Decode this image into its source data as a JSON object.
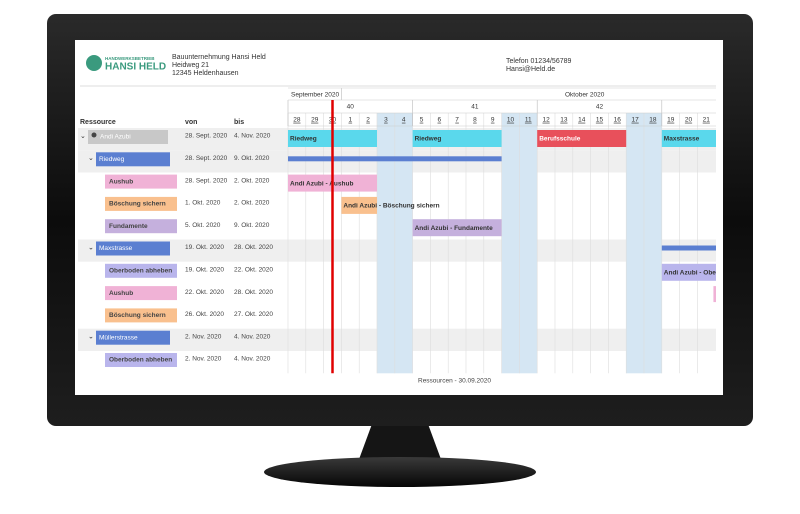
{
  "header": {
    "logo_small": "HANDWERKSBETRIEB",
    "logo_big": "HANSI HELD",
    "company": "Bauunternehmung Hansi Held",
    "street": "Heidweg 21",
    "city": "12345 Heldenhausen",
    "phone": "Telefon 01234/56789",
    "email": "Hansi@Held.de"
  },
  "table": {
    "columns": [
      "Ressource",
      "von",
      "bis"
    ],
    "rows": [
      [
        "Andi Azubi",
        "28. Sept. 2020",
        "4. Nov. 2020"
      ],
      [
        "Riedweg",
        "28. Sept. 2020",
        "9. Okt. 2020"
      ],
      [
        "Aushub",
        "28. Sept. 2020",
        "2. Okt. 2020"
      ],
      [
        "Böschung sichern",
        "1. Okt. 2020",
        "2. Okt. 2020"
      ],
      [
        "Fundamente",
        "5. Okt. 2020",
        "9. Okt. 2020"
      ],
      [
        "Maxstrasse",
        "19. Okt. 2020",
        "28. Okt. 2020"
      ],
      [
        "Oberboden abheben",
        "19. Okt. 2020",
        "22. Okt. 2020"
      ],
      [
        "Aushub",
        "22. Okt. 2020",
        "28. Okt. 2020"
      ],
      [
        "Böschung sichern",
        "26. Okt. 2020",
        "27. Okt. 2020"
      ],
      [
        "Müllerstrasse",
        "2. Nov. 2020",
        "4. Nov. 2020"
      ],
      [
        "Oberboden abheben",
        "2. Nov. 2020",
        "4. Nov. 2020"
      ]
    ]
  },
  "timeline": {
    "months": [
      "September 2020",
      "Oktober 2020"
    ],
    "weeks": [
      "40",
      "41",
      "42"
    ],
    "days": [
      "28",
      "29",
      "30",
      "1",
      "2",
      "3",
      "4",
      "5",
      "6",
      "7",
      "8",
      "9",
      "10",
      "11",
      "12",
      "13",
      "14",
      "15",
      "16",
      "17",
      "18",
      "19",
      "20",
      "21"
    ]
  },
  "bars": [
    "Riedweg",
    "Riedweg",
    "Berufsschule",
    "Maxstrasse",
    "Andi Azubi - Aushub",
    "Andi Azubi - Böschung sichern",
    "Andi Azubi - Fundamente",
    "Andi Azubi - Obe"
  ],
  "footer": "Ressourcen - 30.09.2020"
}
